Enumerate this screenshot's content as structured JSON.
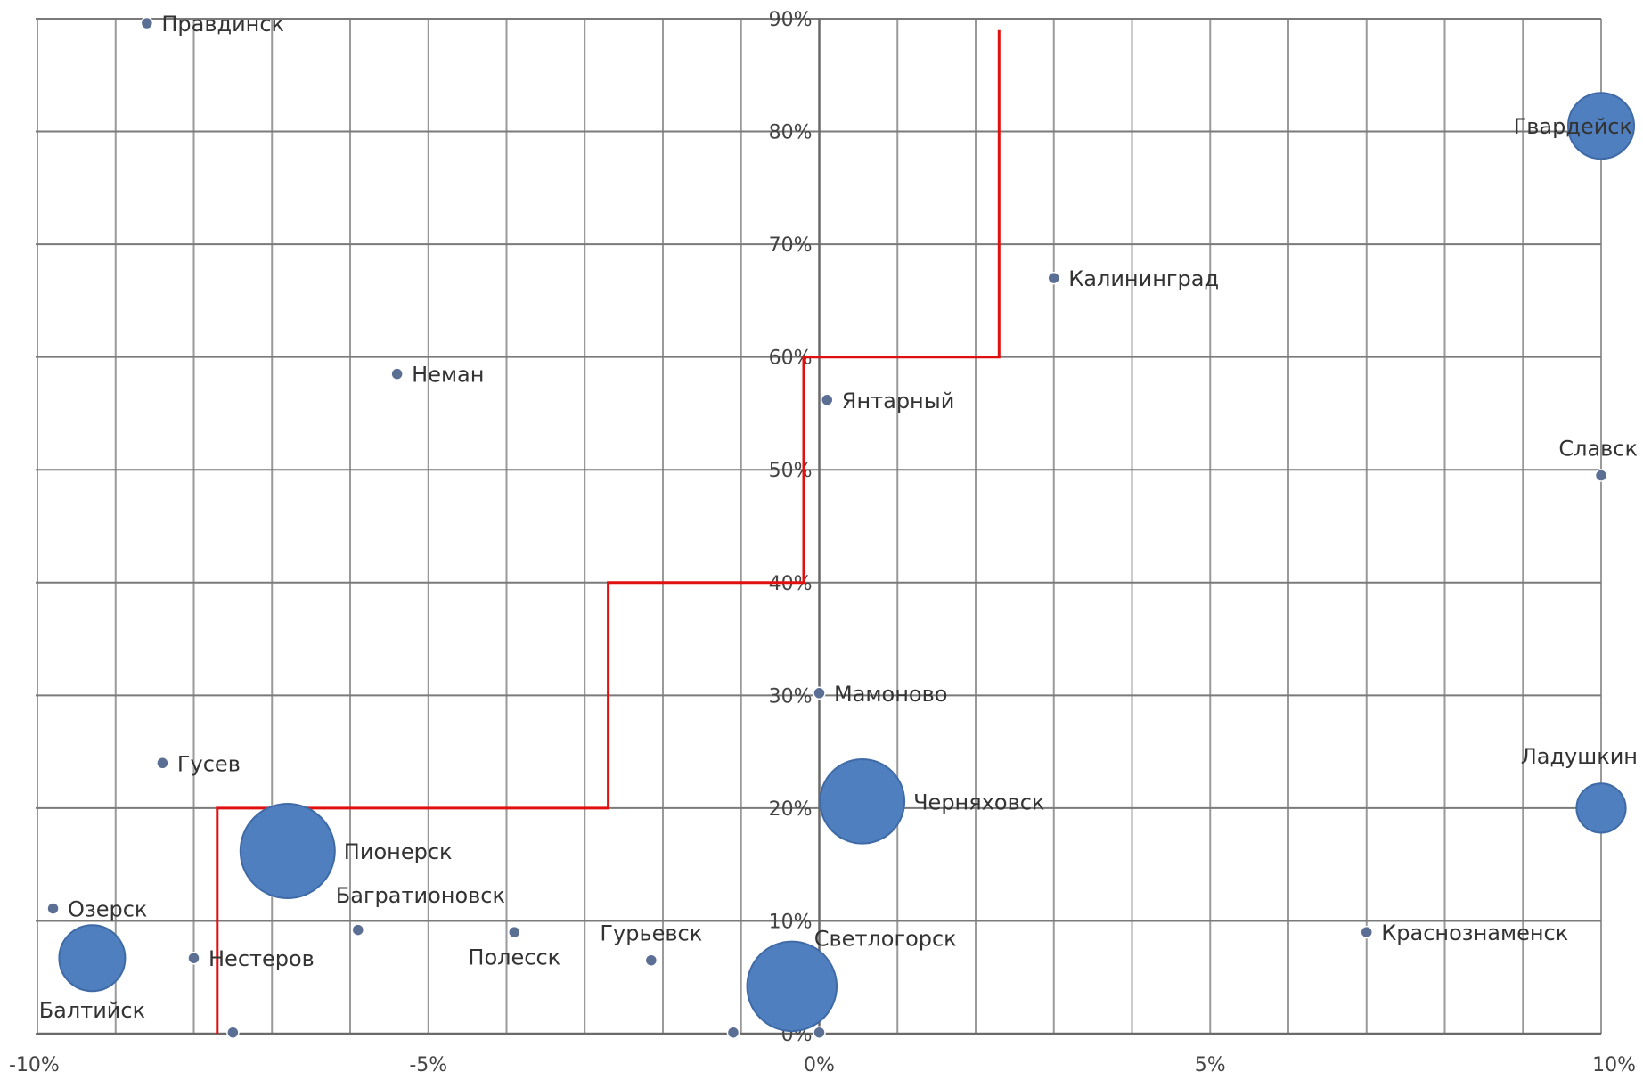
{
  "chart_data": {
    "type": "scatter",
    "title": "",
    "xlabel": "",
    "ylabel": "",
    "xlim": [
      -10,
      10
    ],
    "ylim": [
      0,
      90
    ],
    "x_ticks": [
      {
        "value": -10,
        "label": "-10%"
      },
      {
        "value": -5,
        "label": "-5%"
      },
      {
        "value": 0,
        "label": "0%"
      },
      {
        "value": 5,
        "label": "5%"
      },
      {
        "value": 10,
        "label": "10%"
      }
    ],
    "y_ticks": [
      {
        "value": 0,
        "label": "0%"
      },
      {
        "value": 10,
        "label": "10%"
      },
      {
        "value": 20,
        "label": "20%"
      },
      {
        "value": 30,
        "label": "30%"
      },
      {
        "value": 40,
        "label": "40%"
      },
      {
        "value": 50,
        "label": "50%"
      },
      {
        "value": 60,
        "label": "60%"
      },
      {
        "value": 70,
        "label": "70%"
      },
      {
        "value": 80,
        "label": "80%"
      },
      {
        "value": 90,
        "label": "90%"
      }
    ],
    "grid": true,
    "x_grid_step": 1,
    "bubble_color": "#4f7fbf",
    "step_line_color": "#e01010",
    "points": [
      {
        "name": "Правдинск",
        "x": -8.6,
        "y": 89.6,
        "size": 1,
        "label_pos": "right"
      },
      {
        "name": "Гвардейск",
        "x": 10.0,
        "y": 80.5,
        "size": 4,
        "label_pos": "left-cut"
      },
      {
        "name": "Калининград",
        "x": 3.0,
        "y": 67.0,
        "size": 1,
        "label_pos": "right"
      },
      {
        "name": "Неман",
        "x": -5.4,
        "y": 58.5,
        "size": 1,
        "label_pos": "right"
      },
      {
        "name": "Янтарный",
        "x": 0.1,
        "y": 56.2,
        "size": 1,
        "label_pos": "right"
      },
      {
        "name": "Славск",
        "x": 10.0,
        "y": 49.5,
        "size": 1,
        "label_pos": "above"
      },
      {
        "name": "Мамоново",
        "x": 0.0,
        "y": 30.2,
        "size": 1,
        "label_pos": "right"
      },
      {
        "name": "Гусев",
        "x": -8.4,
        "y": 24.0,
        "size": 1,
        "label_pos": "right"
      },
      {
        "name": "Ладушкин",
        "x": 10.0,
        "y": 20.0,
        "size": 2,
        "label_pos": "above-cut"
      },
      {
        "name": "Черняховск",
        "x": 0.55,
        "y": 20.6,
        "size": 7,
        "label_pos": "right"
      },
      {
        "name": "Пионерск",
        "x": -6.8,
        "y": 16.2,
        "size": 9,
        "label_pos": "right"
      },
      {
        "name": "Озерск",
        "x": -9.8,
        "y": 11.1,
        "size": 1,
        "label_pos": "right"
      },
      {
        "name": "Багратионовск",
        "x": -5.9,
        "y": 9.2,
        "size": 1,
        "label_pos": "above-right"
      },
      {
        "name": "Полесск",
        "x": -3.9,
        "y": 9.0,
        "size": 1,
        "label_pos": "below"
      },
      {
        "name": "Краснознаменск",
        "x": 7.0,
        "y": 9.0,
        "size": 1,
        "label_pos": "right"
      },
      {
        "name": "Нестеров",
        "x": -8.0,
        "y": 6.7,
        "size": 1,
        "label_pos": "right"
      },
      {
        "name": "Гурьевск",
        "x": -2.15,
        "y": 6.5,
        "size": 1,
        "label_pos": "above"
      },
      {
        "name": "Балтийск",
        "x": -9.3,
        "y": 6.7,
        "size": 4,
        "label_pos": "below"
      },
      {
        "name": "Светлогорск",
        "x": -0.35,
        "y": 4.2,
        "size": 8,
        "label_pos": "above-right"
      },
      {
        "name": "",
        "x": -7.5,
        "y": 0.1,
        "size": 1
      },
      {
        "name": "",
        "x": -1.1,
        "y": 0.1,
        "size": 1
      },
      {
        "name": "",
        "x": 0.0,
        "y": 0.1,
        "size": 1
      }
    ],
    "step_line": [
      {
        "x": -7.7,
        "y": 0
      },
      {
        "x": -7.7,
        "y": 20
      },
      {
        "x": -2.7,
        "y": 20
      },
      {
        "x": -2.7,
        "y": 40
      },
      {
        "x": -0.2,
        "y": 40
      },
      {
        "x": -0.2,
        "y": 60
      },
      {
        "x": 2.3,
        "y": 60
      },
      {
        "x": 2.3,
        "y": 89
      }
    ]
  }
}
